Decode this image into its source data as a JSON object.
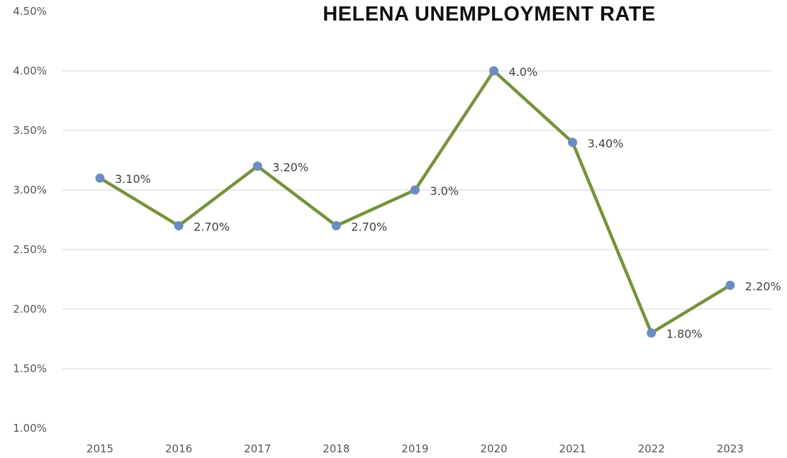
{
  "chart_data": {
    "type": "line",
    "title": "HELENA UNEMPLOYMENT RATE",
    "x": [
      "2015",
      "2016",
      "2017",
      "2018",
      "2019",
      "2020",
      "2021",
      "2022",
      "2023"
    ],
    "series": [
      {
        "values": [
          3.1,
          2.7,
          3.2,
          2.7,
          3.0,
          4.0,
          3.4,
          1.8,
          2.2
        ],
        "data_labels": [
          "3.10%",
          "2.70%",
          "3.20%",
          "2.70%",
          "3.0%",
          "4.0%",
          "3.40%",
          "1.80%",
          "2.20%"
        ]
      }
    ],
    "ylim": [
      1.0,
      4.5
    ],
    "yticks": [
      1.0,
      1.5,
      2.0,
      2.5,
      3.0,
      3.5,
      4.0,
      4.5
    ],
    "ytick_labels": [
      "1.00%",
      "1.50%",
      "2.00%",
      "2.50%",
      "3.00%",
      "3.50%",
      "4.00%",
      "4.50%"
    ],
    "xlabel": "",
    "ylabel": "",
    "grid": true,
    "legend": "none",
    "colors": {
      "line": "#76923c",
      "marker": "#6b8cc0",
      "grid": "#e3e3e3"
    }
  }
}
